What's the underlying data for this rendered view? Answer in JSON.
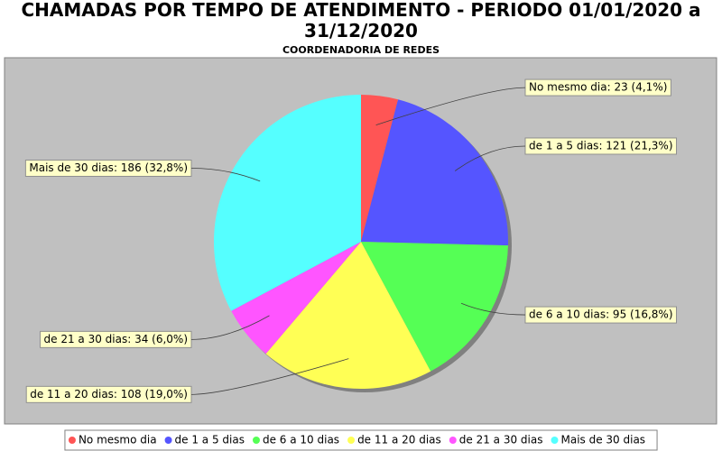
{
  "chart_data": {
    "type": "pie",
    "title": "CHAMADAS POR TEMPO DE ATENDIMENTO - PERIODO 01/01/2020 a 31/12/2020",
    "subtitle": "COORDENADORIA DE REDES",
    "categories": [
      "No mesmo dia",
      "de 1 a 5 dias",
      "de 6 a 10 dias",
      "de 11 a 20 dias",
      "de 21 a 30 dias",
      "Mais de 30 dias"
    ],
    "values": [
      23,
      121,
      95,
      108,
      34,
      186
    ],
    "value_labels": [
      "No mesmo dia: 23 (4,1%)",
      "de 1 a 5 dias: 121 (21,3%)",
      "de 6 a 10 dias: 95 (16,8%)",
      "de 11 a 20 dias: 108 (19,0%)",
      "de 21 a 30 dias: 34 (6,0%)",
      "Mais de 30 dias: 186 (32,8%)"
    ],
    "colors": [
      "#ff5555",
      "#5555ff",
      "#55ff55",
      "#ffff55",
      "#ff55ff",
      "#55ffff"
    ],
    "legend": "bottom"
  }
}
